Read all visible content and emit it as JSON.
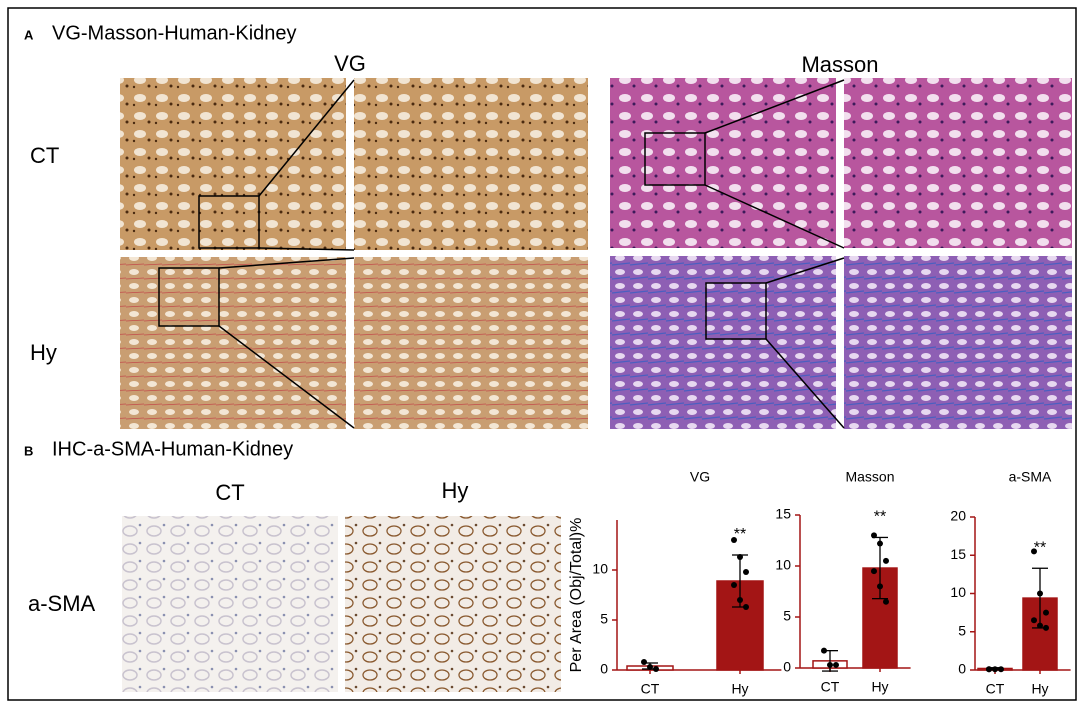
{
  "panel_a": {
    "letter": "A",
    "title": "VG-Masson-Human-Kidney",
    "stain_1": "VG",
    "stain_2": "Masson",
    "row_1": "CT",
    "row_2": "Hy"
  },
  "panel_b": {
    "letter": "B",
    "title": "IHC-a-SMA-Human-Kidney",
    "col_1": "CT",
    "col_2": "Hy",
    "row_1": "a-SMA"
  },
  "chart_data": [
    {
      "type": "bar",
      "title": "VG",
      "y_label": "Per Area  (Obj/Total)%",
      "categories": [
        "CT",
        "Hy"
      ],
      "values": [
        0.4,
        8.9
      ],
      "errors": [
        0.3,
        2.6
      ],
      "points": [
        [
          0.8,
          0.3,
          0.1
        ],
        [
          13,
          11.3,
          9.8,
          8.5,
          7,
          6.3
        ]
      ],
      "annotations": [
        {
          "category": "Hy",
          "text": "**"
        }
      ],
      "color": "#a31515",
      "ylim": [
        0,
        15
      ],
      "yticks": [
        0,
        5,
        10
      ]
    },
    {
      "type": "bar",
      "title": "Masson",
      "categories": [
        "CT",
        "Hy"
      ],
      "values": [
        0.7,
        9.8
      ],
      "errors": [
        1,
        3
      ],
      "points": [
        [
          1.7,
          0.3,
          0.3
        ],
        [
          13,
          12.2,
          10.5,
          9.5,
          8,
          6.5
        ]
      ],
      "annotations": [
        {
          "category": "Hy",
          "text": "**"
        }
      ],
      "color": "#a31515",
      "ylim": [
        0,
        15
      ],
      "yticks": [
        0,
        5,
        10,
        15
      ]
    },
    {
      "type": "bar",
      "title": "a-SMA",
      "categories": [
        "CT",
        "Hy"
      ],
      "values": [
        0.2,
        9.4
      ],
      "errors": [
        0.1,
        3.9
      ],
      "points": [
        [
          0.1,
          0.1,
          0.1,
          0.1
        ],
        [
          15.5,
          10,
          7.5,
          6.5,
          5.8,
          5.5
        ]
      ],
      "annotations": [
        {
          "category": "Hy",
          "text": "**"
        }
      ],
      "color": "#a31515",
      "ylim": [
        0,
        20
      ],
      "yticks": [
        0,
        5,
        10,
        15,
        20
      ]
    }
  ]
}
